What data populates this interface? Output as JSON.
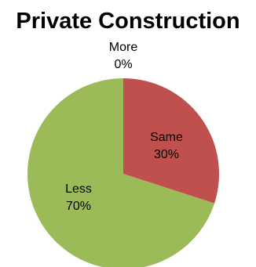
{
  "chart_data": {
    "type": "pie",
    "title": "Private Construction",
    "categories": [
      "More",
      "Same",
      "Less"
    ],
    "values": [
      0,
      30,
      70
    ],
    "value_labels": [
      "0%",
      "30%",
      "70%"
    ],
    "colors": [
      "#4F81BD",
      "#C0504D",
      "#9BBB59"
    ],
    "legend": "none"
  }
}
